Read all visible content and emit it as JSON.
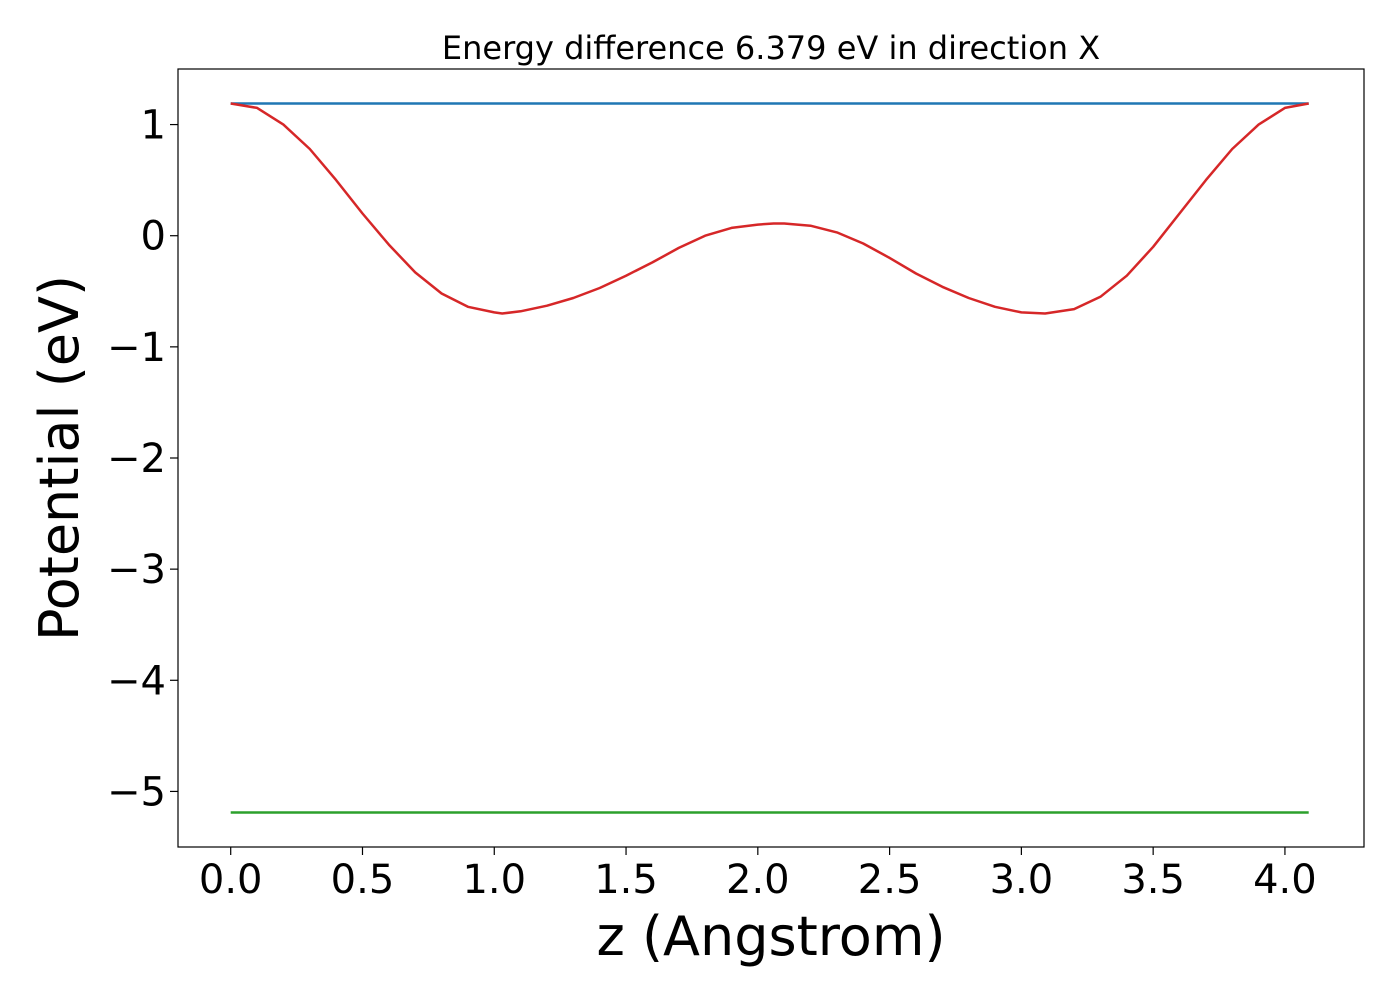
{
  "chart_data": {
    "type": "line",
    "title": "Energy difference 6.379 eV in direction X",
    "xlabel": "z (Angstrom)",
    "ylabel": "Potential (eV)",
    "xlim": [
      -0.2,
      4.3
    ],
    "ylim": [
      -5.5,
      1.5
    ],
    "x_ticks": [
      0.0,
      0.5,
      1.0,
      1.5,
      2.0,
      2.5,
      3.0,
      3.5,
      4.0
    ],
    "x_tick_labels": [
      "0.0",
      "0.5",
      "1.0",
      "1.5",
      "2.0",
      "2.5",
      "3.0",
      "3.5",
      "4.0"
    ],
    "y_ticks": [
      1,
      0,
      -1,
      -2,
      -3,
      -4,
      -5
    ],
    "y_tick_labels": [
      "1",
      "0",
      "−1",
      "−2",
      "−3",
      "−4",
      "−5"
    ],
    "grid": false,
    "legend": "none",
    "series": [
      {
        "color": "#1f77b4",
        "x": [
          0.0,
          4.09
        ],
        "y": [
          1.19,
          1.19
        ]
      },
      {
        "color": "#2ca02c",
        "x": [
          0.0,
          4.09
        ],
        "y": [
          -5.19,
          -5.19
        ]
      },
      {
        "color": "#d62728",
        "x": [
          0.0,
          0.1,
          0.2,
          0.3,
          0.4,
          0.5,
          0.6,
          0.7,
          0.8,
          0.9,
          1.0,
          1.03,
          1.1,
          1.2,
          1.3,
          1.4,
          1.5,
          1.6,
          1.7,
          1.8,
          1.9,
          2.0,
          2.06,
          2.1,
          2.2,
          2.3,
          2.4,
          2.5,
          2.6,
          2.7,
          2.8,
          2.9,
          3.0,
          3.09,
          3.2,
          3.3,
          3.4,
          3.5,
          3.6,
          3.7,
          3.8,
          3.9,
          4.0,
          4.09
        ],
        "y": [
          1.19,
          1.15,
          1.0,
          0.78,
          0.5,
          0.2,
          -0.08,
          -0.33,
          -0.52,
          -0.64,
          -0.69,
          -0.7,
          -0.68,
          -0.63,
          -0.56,
          -0.47,
          -0.36,
          -0.24,
          -0.11,
          0.0,
          0.07,
          0.1,
          0.11,
          0.11,
          0.09,
          0.03,
          -0.07,
          -0.2,
          -0.34,
          -0.46,
          -0.56,
          -0.64,
          -0.69,
          -0.7,
          -0.66,
          -0.55,
          -0.36,
          -0.1,
          0.2,
          0.5,
          0.78,
          1.0,
          1.15,
          1.19
        ]
      }
    ]
  }
}
